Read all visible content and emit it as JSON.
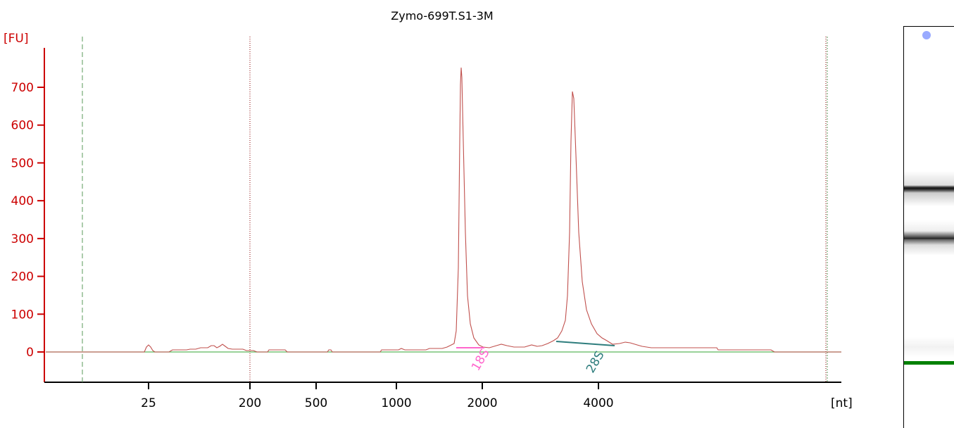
{
  "chart_data": {
    "type": "line",
    "title": "Zymo-699T.S1-3M",
    "ylabel": "[FU]",
    "xlabel": "[nt]",
    "ylim": [
      -40,
      760
    ],
    "yticks": [
      0,
      100,
      200,
      300,
      400,
      500,
      600,
      700
    ],
    "xticks": [
      {
        "label": "25",
        "value": 25
      },
      {
        "label": "200",
        "value": 200
      },
      {
        "label": "500",
        "value": 500
      },
      {
        "label": "1000",
        "value": 1000
      },
      {
        "label": "2000",
        "value": 2000
      },
      {
        "label": "4000",
        "value": 4000
      }
    ],
    "peaks": [
      {
        "label": "18S",
        "color": "#ff66cc",
        "x_nt": 1950,
        "y": 12
      },
      {
        "label": "28S",
        "color": "#2e7d7d",
        "x_nt": 3850,
        "y": 20
      }
    ],
    "colors": {
      "trace": "#c0504d",
      "axis": "#cc0000",
      "baseline": "#5cb85c",
      "marker_green": "#008000",
      "marker_red": "#8b0000"
    }
  },
  "gel": {
    "well_color": "#99aaff",
    "marker_color": "#008000"
  }
}
